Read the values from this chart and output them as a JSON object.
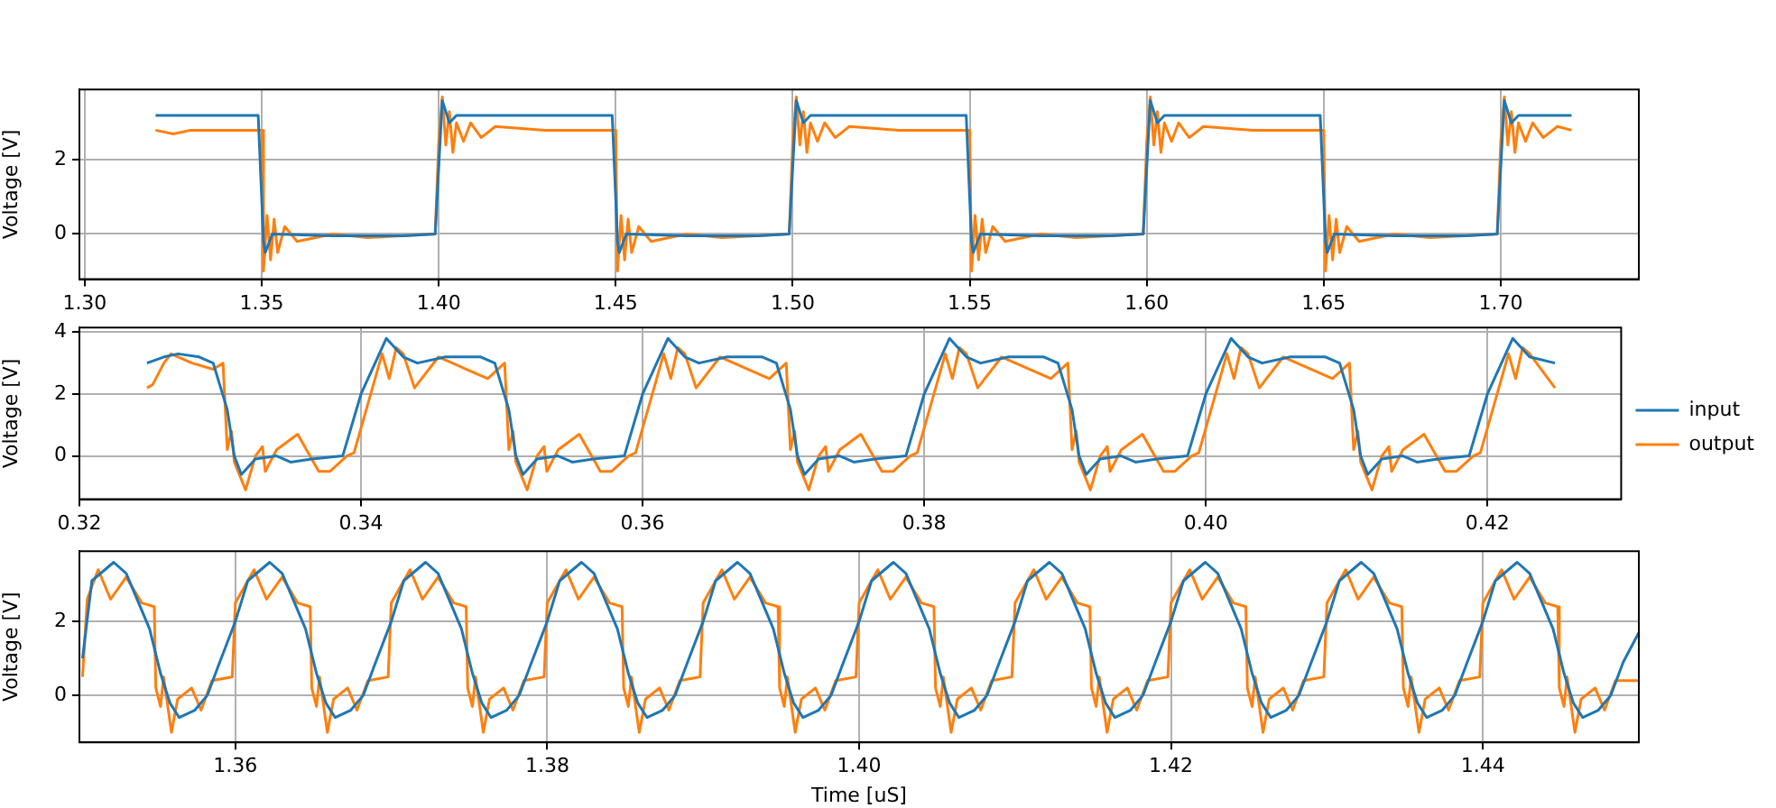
{
  "chart_data": [
    {
      "type": "line",
      "ylabel": "Voltage [V]",
      "xlim": [
        1.2985,
        1.739
      ],
      "ylim": [
        -1.22,
        3.9
      ],
      "xticks": [
        {
          "value": 1.3,
          "label": "1.30"
        },
        1.35,
        {
          "value": 1.4,
          "label": "1.40"
        },
        1.45,
        {
          "value": 1.5,
          "label": "1.50"
        },
        1.55,
        {
          "value": 1.6,
          "label": "1.60"
        },
        1.65,
        {
          "value": 1.7,
          "label": "1.70"
        }
      ],
      "yticks": [
        0,
        2
      ],
      "grid": true,
      "legend": false,
      "series": [
        {
          "color": "#1f77b4",
          "x": [
            1.32,
            1.33,
            1.34,
            1.349,
            1.3505,
            1.351,
            1.353,
            1.37,
            1.39,
            1.399,
            1.401,
            1.403,
            1.405,
            1.42,
            1.44,
            1.449,
            1.4505,
            1.451,
            1.453,
            1.47,
            1.49,
            1.499,
            1.501,
            1.503,
            1.505,
            1.52,
            1.54,
            1.549,
            1.5505,
            1.551,
            1.553,
            1.57,
            1.59,
            1.599,
            1.601,
            1.603,
            1.605,
            1.62,
            1.64,
            1.649,
            1.6505,
            1.651,
            1.653,
            1.67,
            1.69,
            1.699,
            1.701,
            1.703,
            1.705,
            1.72
          ],
          "values": [
            3.2,
            3.2,
            3.2,
            3.2,
            -0.2,
            -0.5,
            0,
            -0.05,
            -0.05,
            0,
            3.6,
            3.0,
            3.2,
            3.2,
            3.2,
            3.2,
            -0.2,
            -0.5,
            0,
            -0.05,
            -0.05,
            0,
            3.6,
            3.0,
            3.2,
            3.2,
            3.2,
            3.2,
            -0.2,
            -0.5,
            0,
            -0.05,
            -0.05,
            0,
            3.6,
            3.0,
            3.2,
            3.2,
            3.2,
            3.2,
            -0.2,
            -0.5,
            0,
            -0.05,
            -0.05,
            0,
            3.6,
            3.0,
            3.2,
            3.2
          ]
        },
        {
          "color": "#ff7f0e",
          "x": [
            1.32,
            1.325,
            1.33,
            1.34,
            1.35,
            1.3505,
            1.3515,
            1.3525,
            1.3535,
            1.3545,
            1.3565,
            1.36,
            1.37,
            1.38,
            1.399,
            1.4,
            1.401,
            1.402,
            1.403,
            1.404,
            1.405,
            1.407,
            1.409,
            1.412,
            1.416,
            1.43,
            1.45,
            1.4505,
            1.4515,
            1.4525,
            1.4535,
            1.4545,
            1.4565,
            1.46,
            1.47,
            1.48,
            1.499,
            1.5,
            1.501,
            1.502,
            1.503,
            1.504,
            1.505,
            1.507,
            1.509,
            1.512,
            1.516,
            1.53,
            1.55,
            1.5505,
            1.5515,
            1.5525,
            1.5535,
            1.5545,
            1.5565,
            1.56,
            1.57,
            1.58,
            1.599,
            1.6,
            1.601,
            1.602,
            1.603,
            1.604,
            1.605,
            1.607,
            1.609,
            1.612,
            1.616,
            1.63,
            1.65,
            1.6505,
            1.6515,
            1.6525,
            1.6535,
            1.6545,
            1.6565,
            1.66,
            1.67,
            1.68,
            1.699,
            1.7,
            1.701,
            1.702,
            1.703,
            1.704,
            1.705,
            1.707,
            1.709,
            1.712,
            1.716,
            1.72
          ],
          "values": [
            2.8,
            2.7,
            2.8,
            2.8,
            2.8,
            -1.0,
            0.5,
            -0.7,
            0.4,
            -0.5,
            0.2,
            -0.2,
            0,
            -0.1,
            0,
            2.5,
            3.7,
            2.4,
            3.3,
            2.2,
            3.0,
            2.5,
            3.0,
            2.6,
            2.9,
            2.8,
            2.8,
            -1.0,
            0.5,
            -0.7,
            0.4,
            -0.5,
            0.2,
            -0.2,
            0,
            -0.1,
            0,
            2.5,
            3.7,
            2.4,
            3.3,
            2.2,
            3.0,
            2.5,
            3.0,
            2.6,
            2.9,
            2.8,
            2.8,
            -1.0,
            0.5,
            -0.7,
            0.4,
            -0.5,
            0.2,
            -0.2,
            0,
            -0.1,
            0,
            2.5,
            3.7,
            2.4,
            3.3,
            2.2,
            3.0,
            2.5,
            3.0,
            2.6,
            2.9,
            2.8,
            2.8,
            -1.0,
            0.5,
            -0.7,
            0.4,
            -0.5,
            0.2,
            -0.2,
            0,
            -0.1,
            0,
            2.5,
            3.7,
            2.4,
            3.3,
            2.2,
            3.0,
            2.5,
            3.0,
            2.6,
            2.9,
            2.8
          ]
        }
      ]
    },
    {
      "type": "line",
      "ylabel": "Voltage [V]",
      "xlim": [
        0.32,
        0.4295
      ],
      "ylim": [
        -1.4,
        4.15
      ],
      "xticks": [
        0.32,
        0.34,
        0.36,
        0.38,
        {
          "value": 0.4,
          "label": "0.40"
        },
        0.42
      ],
      "yticks": [
        0,
        2,
        4
      ],
      "grid": true,
      "legend": "right",
      "series": [
        {
          "name": "input",
          "color": "#1f77b4",
          "x": [
            0.3248,
            0.326,
            0.327,
            0.3285,
            0.3295,
            0.3305,
            0.331,
            0.3315,
            0.3325,
            0.334,
            0.335,
            0.3365,
            0.3387,
            0.34,
            0.341,
            0.3418,
            0.343,
            0.344,
            0.346,
            0.3485,
            0.3495,
            0.3505,
            0.351,
            0.3515,
            0.3525,
            0.354,
            0.355,
            0.3565,
            0.3587,
            0.36,
            0.361,
            0.3618,
            0.363,
            0.364,
            0.366,
            0.3685,
            0.3695,
            0.3705,
            0.371,
            0.3715,
            0.3725,
            0.374,
            0.375,
            0.3765,
            0.3787,
            0.38,
            0.381,
            0.3818,
            0.383,
            0.384,
            0.386,
            0.3885,
            0.3895,
            0.3905,
            0.391,
            0.3915,
            0.3925,
            0.394,
            0.395,
            0.3965,
            0.3987,
            0.4,
            0.401,
            0.4018,
            0.403,
            0.404,
            0.406,
            0.4085,
            0.4095,
            0.4105,
            0.411,
            0.4115,
            0.4125,
            0.414,
            0.415,
            0.4165,
            0.4187,
            0.42,
            0.421,
            0.4218,
            0.423,
            0.4248
          ],
          "values": [
            3.0,
            3.2,
            3.3,
            3.2,
            3.0,
            1.5,
            0,
            -0.6,
            -0.1,
            0,
            -0.2,
            -0.1,
            0,
            2.0,
            3.0,
            3.8,
            3.2,
            3.0,
            3.2,
            3.2,
            3.0,
            1.5,
            0,
            -0.6,
            -0.1,
            0,
            -0.2,
            -0.1,
            0,
            2.0,
            3.0,
            3.8,
            3.2,
            3.0,
            3.2,
            3.2,
            3.0,
            1.5,
            0,
            -0.6,
            -0.1,
            0,
            -0.2,
            -0.1,
            0,
            2.0,
            3.0,
            3.8,
            3.2,
            3.0,
            3.2,
            3.2,
            3.0,
            1.5,
            0,
            -0.6,
            -0.1,
            0,
            -0.2,
            -0.1,
            0,
            2.0,
            3.0,
            3.8,
            3.2,
            3.0,
            3.2,
            3.2,
            3.0,
            1.5,
            0,
            -0.6,
            -0.1,
            0,
            -0.2,
            -0.1,
            0,
            2.0,
            3.0,
            3.8,
            3.2,
            3.0
          ]
        },
        {
          "name": "output",
          "color": "#ff7f0e",
          "x": [
            0.3248,
            0.3252,
            0.326,
            0.3265,
            0.328,
            0.3295,
            0.3302,
            0.3305,
            0.3308,
            0.331,
            0.3318,
            0.3325,
            0.333,
            0.3332,
            0.334,
            0.3355,
            0.337,
            0.3378,
            0.339,
            0.3395,
            0.341,
            0.3415,
            0.342,
            0.3425,
            0.343,
            0.3438,
            0.3455,
            0.3475,
            0.349,
            0.3502,
            0.3505,
            0.3508,
            0.351,
            0.3518,
            0.3525,
            0.353,
            0.3532,
            0.354,
            0.3555,
            0.357,
            0.3578,
            0.359,
            0.3595,
            0.361,
            0.3615,
            0.362,
            0.3625,
            0.363,
            0.3638,
            0.3655,
            0.3675,
            0.369,
            0.3702,
            0.3705,
            0.3708,
            0.371,
            0.3718,
            0.3725,
            0.373,
            0.3732,
            0.374,
            0.3755,
            0.377,
            0.3778,
            0.379,
            0.3795,
            0.381,
            0.3815,
            0.382,
            0.3825,
            0.383,
            0.3838,
            0.3855,
            0.3875,
            0.389,
            0.3902,
            0.3905,
            0.3908,
            0.391,
            0.3918,
            0.3925,
            0.393,
            0.3932,
            0.394,
            0.3955,
            0.397,
            0.3978,
            0.399,
            0.3995,
            0.401,
            0.4015,
            0.402,
            0.4025,
            0.403,
            0.4038,
            0.4055,
            0.4075,
            0.409,
            0.4102,
            0.4105,
            0.4108,
            0.411,
            0.4118,
            0.4125,
            0.413,
            0.4132,
            0.414,
            0.4155,
            0.417,
            0.4178,
            0.419,
            0.4195,
            0.421,
            0.4215,
            0.422,
            0.4225,
            0.423,
            0.4248
          ],
          "values": [
            2.2,
            2.3,
            3.0,
            3.3,
            3.0,
            2.8,
            3.0,
            0.2,
            0.8,
            -0.2,
            -1.1,
            0,
            0.3,
            -0.5,
            0.2,
            0.7,
            -0.5,
            -0.5,
            0,
            0.1,
            2.5,
            3.3,
            2.5,
            3.5,
            3.3,
            2.2,
            3.2,
            2.8,
            2.5,
            3.0,
            0.2,
            0.8,
            -0.2,
            -1.1,
            0,
            0.3,
            -0.5,
            0.2,
            0.7,
            -0.5,
            -0.5,
            0,
            0.1,
            2.5,
            3.3,
            2.5,
            3.5,
            3.3,
            2.2,
            3.2,
            2.8,
            2.5,
            3.0,
            0.2,
            0.8,
            -0.2,
            -1.1,
            0,
            0.3,
            -0.5,
            0.2,
            0.7,
            -0.5,
            -0.5,
            0,
            0.1,
            2.5,
            3.3,
            2.5,
            3.5,
            3.3,
            2.2,
            3.2,
            2.8,
            2.5,
            3.0,
            0.2,
            0.8,
            -0.2,
            -1.1,
            0,
            0.3,
            -0.5,
            0.2,
            0.7,
            -0.5,
            -0.5,
            0,
            0.1,
            2.5,
            3.3,
            2.5,
            3.5,
            3.3,
            2.2,
            3.2,
            2.8,
            2.5,
            3.0,
            0.2,
            0.8,
            -0.2,
            -1.1,
            0,
            0.3,
            -0.5,
            0.2,
            0.7,
            -0.5,
            -0.5,
            0,
            0.1,
            2.5,
            3.3,
            2.5,
            3.5,
            3.3,
            2.2
          ]
        }
      ]
    },
    {
      "type": "line",
      "xlabel": "Time [uS]",
      "ylabel": "Voltage [V]",
      "xlim": [
        1.35,
        1.45
      ],
      "ylim": [
        -1.27,
        3.9
      ],
      "xticks": [
        1.36,
        1.38,
        {
          "value": 1.4,
          "label": "1.40"
        },
        1.42,
        1.44
      ],
      "yticks": [
        0,
        2
      ],
      "grid": true,
      "legend": false,
      "series": [
        {
          "color": "#1f77b4",
          "x": [
            1.3502,
            1.3508,
            1.3522,
            1.353,
            1.3545,
            1.3552,
            1.3558,
            1.3564,
            1.3574,
            1.3582,
            1.359,
            1.36,
            1.3608,
            1.3622,
            1.363,
            1.3645,
            1.3652,
            1.3658,
            1.3664,
            1.3674,
            1.3682,
            1.369,
            1.37,
            1.3708,
            1.3722,
            1.373,
            1.3745,
            1.3752,
            1.3758,
            1.3764,
            1.3774,
            1.3782,
            1.379,
            1.38,
            1.3808,
            1.3822,
            1.383,
            1.3845,
            1.3852,
            1.3858,
            1.3864,
            1.3874,
            1.3882,
            1.389,
            1.39,
            1.3908,
            1.3922,
            1.393,
            1.3945,
            1.3952,
            1.3958,
            1.3964,
            1.3974,
            1.3982,
            1.399,
            1.4,
            1.4008,
            1.4022,
            1.403,
            1.4045,
            1.4052,
            1.4058,
            1.4064,
            1.4074,
            1.4082,
            1.409,
            1.41,
            1.4108,
            1.4122,
            1.413,
            1.4145,
            1.4152,
            1.4158,
            1.4164,
            1.4174,
            1.4182,
            1.419,
            1.42,
            1.4208,
            1.4222,
            1.423,
            1.4245,
            1.4252,
            1.4258,
            1.4264,
            1.4274,
            1.4282,
            1.429,
            1.43,
            1.4308,
            1.4322,
            1.433,
            1.4345,
            1.4352,
            1.4358,
            1.4364,
            1.4374,
            1.4382,
            1.439,
            1.44,
            1.4408,
            1.4422,
            1.443,
            1.4445,
            1.4452,
            1.4458,
            1.4464,
            1.4474,
            1.4482,
            1.449,
            1.45
          ],
          "values": [
            1.0,
            3.1,
            3.6,
            3.3,
            1.8,
            0.6,
            -0.2,
            -0.6,
            -0.4,
            0,
            0.9,
            2.0,
            3.1,
            3.6,
            3.3,
            1.8,
            0.6,
            -0.2,
            -0.6,
            -0.4,
            0,
            0.9,
            2.0,
            3.1,
            3.6,
            3.3,
            1.8,
            0.6,
            -0.2,
            -0.6,
            -0.4,
            0,
            0.9,
            2.0,
            3.1,
            3.6,
            3.3,
            1.8,
            0.6,
            -0.2,
            -0.6,
            -0.4,
            0,
            0.9,
            2.0,
            3.1,
            3.6,
            3.3,
            1.8,
            0.6,
            -0.2,
            -0.6,
            -0.4,
            0,
            0.9,
            2.0,
            3.1,
            3.6,
            3.3,
            1.8,
            0.6,
            -0.2,
            -0.6,
            -0.4,
            0,
            0.9,
            2.0,
            3.1,
            3.6,
            3.3,
            1.8,
            0.6,
            -0.2,
            -0.6,
            -0.4,
            0,
            0.9,
            2.0,
            3.1,
            3.6,
            3.3,
            1.8,
            0.6,
            -0.2,
            -0.6,
            -0.4,
            0,
            0.9,
            2.0,
            3.1,
            3.6,
            3.3,
            1.8,
            0.6,
            -0.2,
            -0.6,
            -0.4,
            0,
            0.9,
            2.0,
            3.1,
            3.6,
            3.3,
            1.8,
            0.6,
            -0.2,
            -0.6,
            -0.4,
            0,
            0.9,
            1.7
          ]
        },
        {
          "color": "#ff7f0e",
          "x": [
            1.3502,
            1.3505,
            1.3512,
            1.352,
            1.353,
            1.354,
            1.3548,
            1.3549,
            1.3552,
            1.3554,
            1.3559,
            1.3563,
            1.3572,
            1.3578,
            1.3585,
            1.3598,
            1.36,
            1.3612,
            1.362,
            1.363,
            1.364,
            1.3648,
            1.3649,
            1.3652,
            1.3654,
            1.3659,
            1.3663,
            1.3672,
            1.3678,
            1.3685,
            1.3698,
            1.37,
            1.3712,
            1.372,
            1.373,
            1.374,
            1.3748,
            1.3749,
            1.3752,
            1.3754,
            1.3759,
            1.3763,
            1.3772,
            1.3778,
            1.3785,
            1.3798,
            1.38,
            1.3812,
            1.382,
            1.383,
            1.384,
            1.3848,
            1.3849,
            1.3852,
            1.3854,
            1.3859,
            1.3863,
            1.3872,
            1.3878,
            1.3885,
            1.3898,
            1.39,
            1.3912,
            1.392,
            1.393,
            1.394,
            1.3948,
            1.3949,
            1.3952,
            1.3954,
            1.3959,
            1.3963,
            1.3972,
            1.3978,
            1.3985,
            1.3998,
            1.4,
            1.4012,
            1.402,
            1.403,
            1.404,
            1.4048,
            1.4049,
            1.4052,
            1.4054,
            1.4059,
            1.4063,
            1.4072,
            1.4078,
            1.4085,
            1.4098,
            1.41,
            1.4112,
            1.412,
            1.413,
            1.414,
            1.4148,
            1.4149,
            1.4152,
            1.4154,
            1.4159,
            1.4163,
            1.4172,
            1.4178,
            1.4185,
            1.4198,
            1.42,
            1.4212,
            1.422,
            1.423,
            1.424,
            1.4248,
            1.4249,
            1.4252,
            1.4254,
            1.4259,
            1.4263,
            1.4272,
            1.4278,
            1.4285,
            1.4298,
            1.43,
            1.4312,
            1.432,
            1.433,
            1.434,
            1.4348,
            1.4349,
            1.4352,
            1.4354,
            1.4359,
            1.4363,
            1.4372,
            1.4378,
            1.4385,
            1.4398,
            1.44,
            1.4412,
            1.442,
            1.443,
            1.444,
            1.4448,
            1.4449,
            1.4452,
            1.4454,
            1.4459,
            1.4463,
            1.4472,
            1.4478,
            1.4485,
            1.45
          ],
          "values": [
            0.5,
            2.6,
            3.4,
            2.6,
            3.2,
            2.5,
            2.4,
            0.2,
            -0.3,
            0.5,
            -1.0,
            -0.1,
            0.2,
            -0.4,
            0.4,
            0.5,
            2.5,
            3.4,
            2.6,
            3.2,
            2.5,
            2.4,
            0.2,
            -0.3,
            0.5,
            -1.0,
            -0.1,
            0.2,
            -0.4,
            0.4,
            0.5,
            2.5,
            3.4,
            2.6,
            3.2,
            2.5,
            2.4,
            0.2,
            -0.3,
            0.5,
            -1.0,
            -0.1,
            0.2,
            -0.4,
            0.4,
            0.5,
            2.5,
            3.4,
            2.6,
            3.2,
            2.5,
            2.4,
            0.2,
            -0.3,
            0.5,
            -1.0,
            -0.1,
            0.2,
            -0.4,
            0.4,
            0.5,
            2.5,
            3.4,
            2.6,
            3.2,
            2.5,
            2.4,
            0.2,
            -0.3,
            0.5,
            -1.0,
            -0.1,
            0.2,
            -0.4,
            0.4,
            0.5,
            2.5,
            3.4,
            2.6,
            3.2,
            2.5,
            2.4,
            0.2,
            -0.3,
            0.5,
            -1.0,
            -0.1,
            0.2,
            -0.4,
            0.4,
            0.5,
            2.5,
            3.4,
            2.6,
            3.2,
            2.5,
            2.4,
            0.2,
            -0.3,
            0.5,
            -1.0,
            -0.1,
            0.2,
            -0.4,
            0.4,
            0.5,
            2.5,
            3.4,
            2.6,
            3.2,
            2.5,
            2.4,
            0.2,
            -0.3,
            0.5,
            -1.0,
            -0.1,
            0.2,
            -0.4,
            0.4,
            0.5,
            2.5,
            3.4,
            2.6,
            3.2,
            2.5,
            2.4,
            0.2,
            -0.3,
            0.5,
            -1.0,
            -0.1,
            0.2,
            -0.4,
            0.4,
            0.5,
            2.5,
            3.4,
            2.6,
            3.2,
            2.5,
            2.4,
            0.2,
            -0.3,
            0.5,
            -1.0,
            -0.1,
            0.2,
            -0.4,
            0.4,
            0.4
          ]
        }
      ]
    }
  ]
}
